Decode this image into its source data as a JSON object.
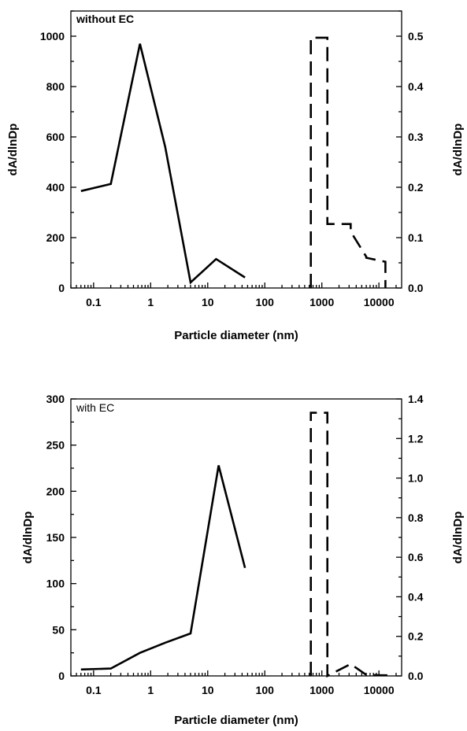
{
  "chart_data": [
    {
      "type": "line",
      "annotation": "without EC",
      "xlabel": "Particle diameter (nm)",
      "ylabel": "dA/dlnDp",
      "y2label": "dA/dlnDp",
      "x_scale": "log",
      "xlim": [
        0.04,
        25000
      ],
      "ylim": [
        0,
        1100
      ],
      "y2lim": [
        0,
        0.55
      ],
      "xticks": [
        0.1,
        1,
        10,
        100,
        1000,
        10000
      ],
      "xtick_labels": [
        "0.1",
        "1",
        "10",
        "100",
        "1000",
        "10000"
      ],
      "yticks": [
        0,
        200,
        400,
        600,
        800,
        1000
      ],
      "ytick_labels": [
        "0",
        "200",
        "400",
        "600",
        "800",
        "1000"
      ],
      "y2ticks": [
        0,
        0.1,
        0.2,
        0.3,
        0.4,
        0.5
      ],
      "y2tick_labels": [
        "0.0",
        "0.1",
        "0.2",
        "0.3",
        "0.4",
        "0.5"
      ],
      "annotation_bold": true,
      "series": [
        {
          "axis": "left",
          "style": "solid",
          "x": [
            0.06,
            0.2,
            0.65,
            1.8,
            5.0,
            14,
            45
          ],
          "y": [
            385,
            413,
            970,
            560,
            22,
            115,
            42
          ]
        },
        {
          "axis": "right",
          "style": "dashed",
          "x": [
            640,
            640,
            1250,
            1250,
            3200,
            3200,
            6000,
            6000,
            13000,
            13000
          ],
          "y": [
            0.0,
            0.497,
            0.497,
            0.127,
            0.127,
            0.112,
            0.062,
            0.06,
            0.052,
            0.0
          ]
        }
      ]
    },
    {
      "type": "line",
      "annotation": "with EC",
      "xlabel": "Particle diameter (nm)",
      "ylabel": "dA/dlnDp",
      "y2label": "dA/dlnDp",
      "x_scale": "log",
      "xlim": [
        0.04,
        25000
      ],
      "ylim": [
        0,
        300
      ],
      "y2lim": [
        0,
        1.4
      ],
      "xticks": [
        0.1,
        1,
        10,
        100,
        1000,
        10000
      ],
      "xtick_labels": [
        "0.1",
        "1",
        "10",
        "100",
        "1000",
        "10000"
      ],
      "yticks": [
        0,
        50,
        100,
        150,
        200,
        250,
        300
      ],
      "ytick_labels": [
        "0",
        "50",
        "100",
        "150",
        "200",
        "250",
        "300"
      ],
      "y2ticks": [
        0,
        0.2,
        0.4,
        0.6,
        0.8,
        1.0,
        1.2,
        1.4
      ],
      "y2tick_labels": [
        "0.0",
        "0.2",
        "0.4",
        "0.6",
        "0.8",
        "1.0",
        "1.2",
        "1.4"
      ],
      "annotation_bold": false,
      "series": [
        {
          "axis": "left",
          "style": "solid",
          "x": [
            0.06,
            0.2,
            0.65,
            1.8,
            5.0,
            15.5,
            45
          ],
          "y": [
            7,
            8,
            25,
            36,
            46,
            228,
            117
          ]
        },
        {
          "axis": "right",
          "style": "dashed",
          "x": [
            640,
            640,
            1250,
            1250,
            3200,
            3200,
            6000,
            12000,
            18000
          ],
          "y": [
            0.0,
            1.33,
            1.33,
            0.0,
            0.06,
            0.06,
            0.005,
            0.003,
            0.003
          ]
        }
      ]
    }
  ]
}
